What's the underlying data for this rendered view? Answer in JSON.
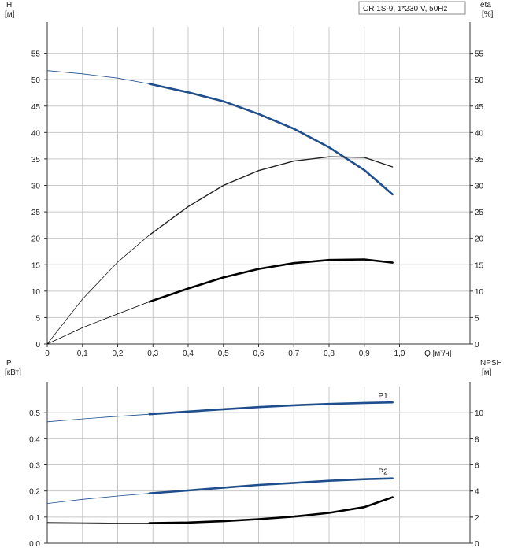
{
  "chart_data": [
    {
      "type": "line",
      "legend": "CR 1S-9, 1*230 V, 50Hz",
      "left_axis_label": [
        "H",
        "[м]"
      ],
      "right_axis_label": [
        "eta",
        "[%]"
      ],
      "x_axis_label": "Q [м³/ч]",
      "x_ticks": [
        "0",
        "0,1",
        "0,2",
        "0,3",
        "0,4",
        "0,5",
        "0,6",
        "0,7",
        "0,8",
        "0,9",
        "1,0"
      ],
      "x_tick_values": [
        0,
        0.1,
        0.2,
        0.3,
        0.4,
        0.5,
        0.6,
        0.7,
        0.8,
        0.9,
        1.0
      ],
      "y_ticks": [
        "0",
        "5",
        "10",
        "15",
        "20",
        "25",
        "30",
        "35",
        "40",
        "45",
        "50",
        "55"
      ],
      "y_tick_values": [
        0,
        5,
        10,
        15,
        20,
        25,
        30,
        35,
        40,
        45,
        50,
        55
      ],
      "xlim": [
        0,
        1.2
      ],
      "ylim": [
        0,
        60
      ],
      "grid": true,
      "series": [
        {
          "color": "#1f4e8c",
          "x": [
            0,
            0.1,
            0.2,
            0.29,
            0.4,
            0.5,
            0.6,
            0.7,
            0.8,
            0.9,
            0.98
          ],
          "y": [
            51.7,
            51.1,
            50.3,
            49.2,
            47.6,
            45.9,
            43.5,
            40.7,
            37.2,
            32.9,
            28.3
          ]
        },
        {
          "color": "#222222",
          "x": [
            0,
            0.1,
            0.2,
            0.29,
            0.4,
            0.5,
            0.6,
            0.7,
            0.8,
            0.9,
            0.98
          ],
          "y": [
            0,
            8.5,
            15.5,
            20.6,
            26.0,
            30.0,
            32.8,
            34.6,
            35.4,
            35.3,
            33.5
          ]
        },
        {
          "color": "#000000",
          "x": [
            0,
            0.1,
            0.2,
            0.29,
            0.4,
            0.5,
            0.6,
            0.7,
            0.8,
            0.9,
            0.98
          ],
          "y": [
            0,
            3.1,
            5.7,
            8.0,
            10.5,
            12.6,
            14.2,
            15.3,
            15.9,
            16.0,
            15.4
          ]
        }
      ]
    },
    {
      "type": "line",
      "left_axis_label": [
        "P",
        "[кВт]"
      ],
      "right_axis_label": [
        "NPSH",
        "[м]"
      ],
      "x_ticks": [],
      "y_ticks": [
        "0.0",
        "0.1",
        "0.2",
        "0.3",
        "0.4",
        "0.5"
      ],
      "y_tick_values": [
        0,
        0.1,
        0.2,
        0.3,
        0.4,
        0.5
      ],
      "y2_ticks": [
        "0",
        "2",
        "4",
        "6",
        "8",
        "10"
      ],
      "y2_tick_values": [
        0,
        2,
        4,
        6,
        8,
        10
      ],
      "xlim": [
        0,
        1.2
      ],
      "ylim": [
        0,
        0.6
      ],
      "grid": true,
      "series": [
        {
          "name": "P1",
          "color": "#1f4e8c",
          "x": [
            0,
            0.1,
            0.2,
            0.29,
            0.4,
            0.5,
            0.6,
            0.7,
            0.8,
            0.9,
            0.98
          ],
          "y": [
            0.465,
            0.476,
            0.486,
            0.494,
            0.504,
            0.513,
            0.521,
            0.528,
            0.533,
            0.537,
            0.539
          ]
        },
        {
          "name": "P2",
          "color": "#1f4e8c",
          "x": [
            0,
            0.1,
            0.2,
            0.29,
            0.4,
            0.5,
            0.6,
            0.7,
            0.8,
            0.9,
            0.98
          ],
          "y": [
            0.152,
            0.168,
            0.181,
            0.191,
            0.202,
            0.213,
            0.223,
            0.231,
            0.239,
            0.245,
            0.248
          ]
        },
        {
          "color": "#000000",
          "x": [
            0,
            0.1,
            0.2,
            0.29,
            0.4,
            0.5,
            0.6,
            0.7,
            0.8,
            0.9,
            0.98
          ],
          "y": [
            0.079,
            0.078,
            0.077,
            0.077,
            0.079,
            0.084,
            0.092,
            0.102,
            0.116,
            0.138,
            0.176
          ]
        }
      ]
    }
  ]
}
